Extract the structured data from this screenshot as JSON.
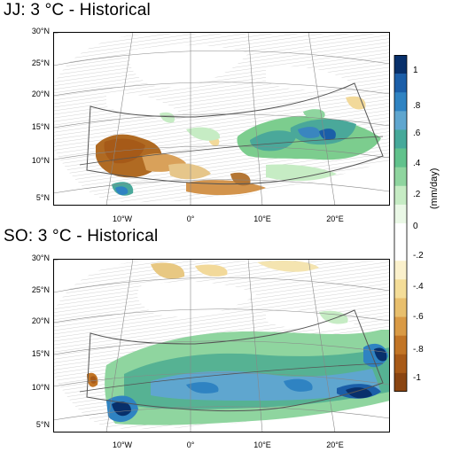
{
  "panels": [
    {
      "title": "JJ: 3 °C - Historical",
      "lat_ticks": [
        "30°N",
        "25°N",
        "20°N",
        "15°N",
        "10°N",
        "5°N"
      ],
      "lon_ticks": [
        "10°W",
        "0°",
        "10°E",
        "20°E"
      ]
    },
    {
      "title": "SO: 3 °C - Historical",
      "lat_ticks": [
        "30°N",
        "25°N",
        "20°N",
        "15°N",
        "10°N",
        "5°N"
      ],
      "lon_ticks": [
        "10°W",
        "0°",
        "10°E",
        "20°E"
      ]
    }
  ],
  "colorbar": {
    "units": "(mm/day)",
    "labels": [
      "1",
      ".8",
      ".6",
      ".4",
      ".2",
      "0",
      "-.2",
      "-.4",
      "-.6",
      "-.8",
      "-1"
    ],
    "colors": [
      "#08306b",
      "#1b5ea8",
      "#2f83c2",
      "#5fa6cf",
      "#46a99a",
      "#61c28c",
      "#8fd59f",
      "#c6ecc4",
      "#eaf8e6",
      "#ffffff",
      "#ffffff",
      "#fbf1cc",
      "#f4dd98",
      "#e8bf6d",
      "#d99a45",
      "#c27526",
      "#a85a18",
      "#8a4512"
    ]
  }
}
